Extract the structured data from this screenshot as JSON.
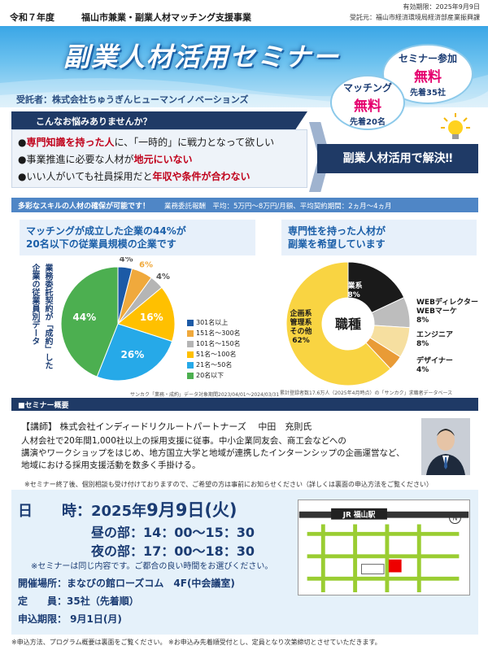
{
  "header": {
    "valid_until": "有効期限：2025年9月9日",
    "fiscal_year": "令和７年度",
    "project_title": "福山市兼業・副業人材マッチング支援事業",
    "consignor": "受託元：福山市経済環境局経済部産業振興課"
  },
  "banner": {
    "title": "副業人材活用セミナー",
    "trustee": "受託者：株式会社ちゅうぎんヒューマンイノベーションズ",
    "seminar_bubble": {
      "label": "セミナー参加",
      "free": "無料",
      "limit": "先着35社"
    },
    "matching_bubble": {
      "label": "マッチング",
      "free": "無料",
      "limit": "先着20名"
    }
  },
  "worries": {
    "heading": "こんなお悩みありませんか？",
    "item1_a": "専門知識を持った人",
    "item1_b": "に、「一時的」に戦力となって欲しい",
    "item2_a": "事業推進に必要な人材が",
    "item2_b": "地元にいない",
    "item3_a": "いい人がいても社員採用だと",
    "item3_b": "年収や条件が合わない",
    "solution": "副業人材活用で解決‼"
  },
  "skills": {
    "heading": "多彩なスキルの人材の確保が可能です！",
    "rate": "業務委託報酬　平均：5万円～8万円/月額、平均契約期間：2ヵ月～4ヵ月"
  },
  "chart_left": {
    "heading_l1": "マッチングが成立した企業の44%が",
    "heading_l2": "20名以下の従業員規模の企業です",
    "vertical_l1": "業務委託契約が「成約」した",
    "vertical_l2": "企業の従業員別データ",
    "source": "サンカク「業務・成約」データ対象期間2023/04/01～2024/03/31",
    "labels": [
      "4%",
      "6%",
      "4%",
      "16%",
      "26%",
      "44%"
    ],
    "colors": [
      "#1c5aa6",
      "#f0a93c",
      "#b5b5b5",
      "#ffc000",
      "#26a9e8",
      "#4caf50"
    ]
  },
  "chart_right": {
    "heading_l1": "専門性を持った人材が",
    "heading_l2": "副業を希望しています",
    "center": "職種",
    "source": "累計登録者数17.6万人（2025年4月時点）の「サンカク」求職者データベース",
    "slices": [
      {
        "l1": "営業系",
        "l2": "18%"
      },
      {
        "l1": "WEBディレクター",
        "l2": "WEBマーケ",
        "l3": "8%"
      },
      {
        "l1": "エンジニア",
        "l2": "8%"
      },
      {
        "l1": "デザイナー",
        "l2": "4%"
      },
      {
        "l1": "企画系",
        "l2": "管理系",
        "l3": "その他",
        "l4": "62%"
      }
    ],
    "colors": [
      "#1a1a1a",
      "#bdbdbd",
      "#f6dfa0",
      "#e99b36",
      "#f9d442"
    ]
  },
  "chart_data": [
    {
      "type": "pie",
      "categories": [
        "301名以上",
        "151名～300名",
        "101名～150名",
        "51名～100名",
        "21名～50名",
        "20名以下"
      ],
      "values": [
        4,
        6,
        4,
        16,
        26,
        44
      ],
      "legend": "right"
    },
    {
      "type": "pie",
      "categories": [
        "営業系",
        "WEBディレクター WEBマーケ",
        "エンジニア",
        "デザイナー",
        "企画系 管理系 その他"
      ],
      "values": [
        18,
        8,
        8,
        4,
        62
      ]
    }
  ],
  "seminar": {
    "heading": "■セミナー概要",
    "lecturer": "【講師】 株式会社インディードリクルートパートナーズ　 中田　充則氏",
    "desc_l1": "人材会社で20年間1,000社以上の採用支援に従事。中小企業同友会、商工会などへの",
    "desc_l2": "講演やワークショップをはじめ、地方国立大学と地域が連携したインターンシップの企画運営など、",
    "desc_l3": "地域における採用支援活動を数多く手掛ける。",
    "note": "※セミナー終了後、個別相談も受け付けておりますので、ご希望の方は事前にお知らせください（詳しくは裏面の申込方法をご覧ください）"
  },
  "schedule": {
    "date_label": "日　　時：",
    "date_value_pre": "2025年",
    "date_value_big": "9月9日(火)",
    "day_session": "昼の部：14：00～15：30",
    "night_session": "夜の部：17：00～18：30",
    "same_content": "※セミナーは同じ内容です。ご都合の良い時間をお選びください。",
    "venue": "開催場所：まなびの館ローズコム　4F(中会議室)",
    "capacity_label": "定　　員：",
    "capacity_value": "35社（先着順）",
    "deadline": "申込期限：  9月1日(月)",
    "map_station": "JR 福山駅",
    "map_north": "N"
  },
  "footer_note": "※申込方法、プログラム概要は裏面をご覧ください。 ※お申込み先着順受付とし、定員となり次第締切とさせていただきます。"
}
